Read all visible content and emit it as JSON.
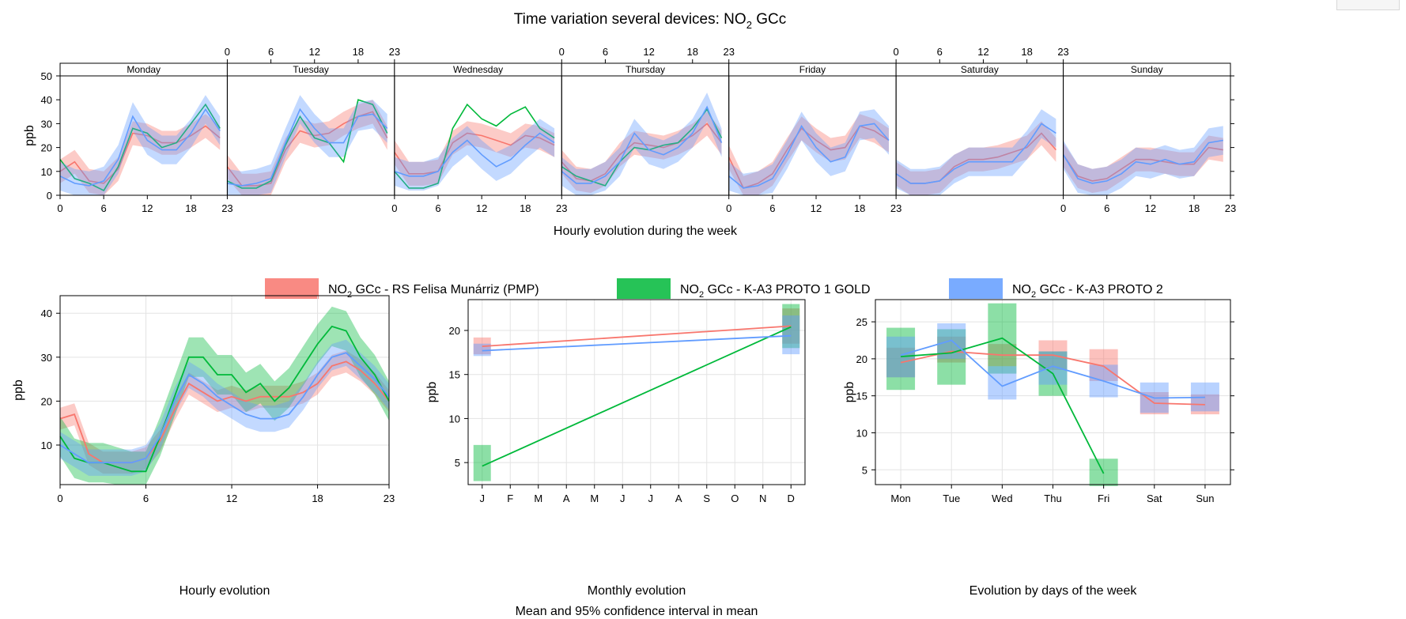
{
  "title_prefix": "Time variation several devices: NO",
  "title_sub": "2",
  "title_suffix": " GCc",
  "colors": {
    "series1": "#f8766d",
    "series2": "#00b93a",
    "series3": "#619cff"
  },
  "legend": [
    {
      "pre": "NO",
      "sub": "2",
      "post": " GCc - RS Felisa Munárriz (PMP)"
    },
    {
      "pre": "NO",
      "sub": "2",
      "post": " GCc - K-A3 PROTO 1 GOLD"
    },
    {
      "pre": "NO",
      "sub": "2",
      "post": " GCc - K-A3 PROTO 2"
    }
  ],
  "chart_data": [
    {
      "id": "weekly",
      "type": "line",
      "title": "",
      "xlabel": "Hourly evolution during the week",
      "ylabel": "ppb",
      "ylim": [
        0,
        50
      ],
      "yticks": [
        0,
        10,
        20,
        30,
        40,
        50
      ],
      "xticks": [
        "0",
        "6",
        "12",
        "18",
        "23"
      ],
      "panels": [
        "Monday",
        "Tuesday",
        "Wednesday",
        "Thursday",
        "Friday",
        "Saturday",
        "Sunday"
      ],
      "x": [
        0,
        2,
        4,
        6,
        8,
        10,
        12,
        14,
        16,
        18,
        20,
        22
      ],
      "series": [
        {
          "name": "NO2 GCc - RS Felisa Munárriz (PMP)",
          "color": "#f8766d",
          "band": 5,
          "days": [
            [
              10,
              14,
              6,
              5,
              11,
              26,
              25,
              22,
              22,
              25,
              29,
              24
            ],
            [
              12,
              4,
              4,
              5,
              19,
              27,
              25,
              26,
              30,
              33,
              35,
              24
            ],
            [
              18,
              9,
              9,
              10,
              22,
              26,
              25,
              23,
              21,
              25,
              24,
              21
            ],
            [
              14,
              7,
              6,
              9,
              17,
              22,
              21,
              20,
              22,
              25,
              30,
              22
            ],
            [
              16,
              3,
              5,
              9,
              19,
              28,
              23,
              19,
              20,
              29,
              27,
              23
            ],
            [
              9,
              5,
              5,
              6,
              12,
              15,
              15,
              16,
              18,
              20,
              26,
              19
            ],
            [
              17,
              8,
              6,
              7,
              11,
              15,
              15,
              14,
              13,
              13,
              20,
              19
            ]
          ]
        },
        {
          "name": "NO2 GCc - K-A3 PROTO 1 GOLD",
          "color": "#00b93a",
          "band": 0,
          "days": [
            [
              15,
              7,
              5,
              2,
              12,
              28,
              26,
              20,
              22,
              30,
              38,
              28
            ],
            [
              6,
              3,
              3,
              6,
              21,
              33,
              24,
              22,
              14,
              40,
              38,
              26
            ],
            [
              10,
              3,
              3,
              5,
              28,
              38,
              32,
              29,
              34,
              37,
              28,
              24
            ],
            [
              12,
              8,
              6,
              4,
              14,
              20,
              19,
              21,
              22,
              28,
              36,
              24
            ]
          ]
        },
        {
          "name": "NO2 GCc - K-A3 PROTO 2",
          "color": "#619cff",
          "band": 6,
          "days": [
            [
              8,
              5,
              4,
              6,
              15,
              33,
              23,
              19,
              19,
              26,
              36,
              27
            ],
            [
              5,
              4,
              5,
              7,
              22,
              36,
              28,
              22,
              22,
              33,
              34,
              28
            ],
            [
              10,
              8,
              8,
              10,
              18,
              23,
              17,
              12,
              15,
              21,
              26,
              22
            ],
            [
              10,
              5,
              5,
              8,
              14,
              26,
              19,
              17,
              20,
              26,
              37,
              22
            ],
            [
              8,
              3,
              4,
              7,
              17,
              29,
              20,
              14,
              16,
              29,
              30,
              23
            ],
            [
              9,
              5,
              5,
              6,
              11,
              14,
              14,
              14,
              14,
              21,
              30,
              26
            ],
            [
              17,
              7,
              5,
              6,
              9,
              14,
              13,
              15,
              13,
              14,
              22,
              23
            ]
          ]
        }
      ]
    },
    {
      "id": "hourly",
      "type": "line",
      "title": "",
      "xlabel": "Hourly evolution",
      "ylabel": "ppb",
      "xlim": [
        0,
        23
      ],
      "ylim": [
        1,
        44
      ],
      "yticks": [
        10,
        20,
        30,
        40
      ],
      "xticks": [
        0,
        6,
        12,
        18,
        23
      ],
      "x": [
        0,
        1,
        2,
        3,
        4,
        5,
        6,
        7,
        8,
        9,
        10,
        11,
        12,
        13,
        14,
        15,
        16,
        17,
        18,
        19,
        20,
        21,
        22,
        23
      ],
      "series": [
        {
          "name": "NO2 GCc - RS Felisa Munárriz (PMP)",
          "color": "#f8766d",
          "band": 2.5,
          "values": [
            16,
            17,
            8,
            6,
            6,
            6,
            7,
            11,
            18,
            24,
            22,
            20,
            21,
            20,
            21,
            21,
            21,
            22,
            24,
            28,
            29,
            27,
            24,
            20
          ]
        },
        {
          "name": "NO2 GCc - K-A3 PROTO 1 GOLD",
          "color": "#00b93a",
          "band": 4.5,
          "values": [
            12,
            7,
            6,
            6,
            5,
            4,
            4,
            12,
            21,
            30,
            30,
            26,
            26,
            22,
            24,
            20,
            23,
            28,
            33,
            37,
            36,
            30,
            26,
            20
          ]
        },
        {
          "name": "NO2 GCc - K-A3 PROTO 2",
          "color": "#619cff",
          "band": 3,
          "values": [
            10,
            8,
            6,
            6,
            6,
            6,
            7,
            12,
            20,
            26,
            24,
            21,
            19,
            17,
            16,
            16,
            17,
            21,
            26,
            30,
            31,
            28,
            25,
            21
          ]
        }
      ]
    },
    {
      "id": "monthly",
      "type": "line",
      "title": "",
      "xlabel": "Monthly evolution",
      "subtitle": "Mean and 95% confidence interval in mean",
      "ylabel": "ppb",
      "ylim": [
        2.5,
        23.5
      ],
      "yticks": [
        5,
        10,
        15,
        20
      ],
      "categories": [
        "J",
        "F",
        "M",
        "A",
        "M",
        "J",
        "J",
        "A",
        "S",
        "O",
        "N",
        "D"
      ],
      "series": [
        {
          "name": "NO2 GCc - RS Felisa Munárriz (PMP)",
          "color": "#f8766d",
          "points": [
            {
              "month": 0,
              "mean": 18.2,
              "lo": 17.3,
              "hi": 19.2
            },
            {
              "month": 11,
              "mean": 20.5,
              "lo": 18.5,
              "hi": 22.5
            }
          ]
        },
        {
          "name": "NO2 GCc - K-A3 PROTO 1 GOLD",
          "color": "#00b93a",
          "points": [
            {
              "month": 0,
              "mean": 4.6,
              "lo": 2.9,
              "hi": 7.0
            },
            {
              "month": 11,
              "mean": 20.4,
              "lo": 18.0,
              "hi": 23.0
            }
          ]
        },
        {
          "name": "NO2 GCc - K-A3 PROTO 2",
          "color": "#619cff",
          "points": [
            {
              "month": 0,
              "mean": 17.7,
              "lo": 17.1,
              "hi": 18.5
            },
            {
              "month": 11,
              "mean": 19.4,
              "lo": 17.3,
              "hi": 21.7
            }
          ]
        }
      ]
    },
    {
      "id": "weekday",
      "type": "line",
      "title": "",
      "xlabel": "Evolution by days of the week",
      "ylabel": "ppb",
      "ylim": [
        3,
        28
      ],
      "yticks": [
        5,
        10,
        15,
        20,
        25
      ],
      "categories": [
        "Mon",
        "Tue",
        "Wed",
        "Thu",
        "Fri",
        "Sat",
        "Sun"
      ],
      "series": [
        {
          "name": "NO2 GCc - RS Felisa Munárriz (PMP)",
          "color": "#f8766d",
          "means": [
            19.5,
            21.0,
            20.5,
            20.5,
            19.0,
            14.0,
            13.8
          ],
          "lo": [
            17.5,
            19.5,
            19.0,
            18.5,
            17.0,
            12.5,
            12.5
          ],
          "hi": [
            21.5,
            23.0,
            22.0,
            22.5,
            21.3,
            15.5,
            15.2
          ]
        },
        {
          "name": "NO2 GCc - K-A3 PROTO 1 GOLD",
          "color": "#00b93a",
          "means": [
            20.3,
            20.8,
            22.8,
            18.0,
            4.5,
            null,
            null
          ],
          "lo": [
            15.8,
            16.5,
            18.0,
            15.0,
            2.8,
            null,
            null
          ],
          "hi": [
            24.2,
            24.0,
            27.5,
            21.0,
            6.5,
            null,
            null
          ]
        },
        {
          "name": "NO2 GCc - K-A3 PROTO 2",
          "color": "#619cff",
          "means": [
            20.5,
            22.5,
            16.3,
            19.0,
            17.0,
            14.7,
            14.8
          ],
          "lo": [
            17.5,
            20.0,
            14.5,
            16.5,
            14.8,
            12.7,
            12.9
          ],
          "hi": [
            23.0,
            24.8,
            19.0,
            21.0,
            19.2,
            16.8,
            16.8
          ]
        }
      ]
    }
  ]
}
